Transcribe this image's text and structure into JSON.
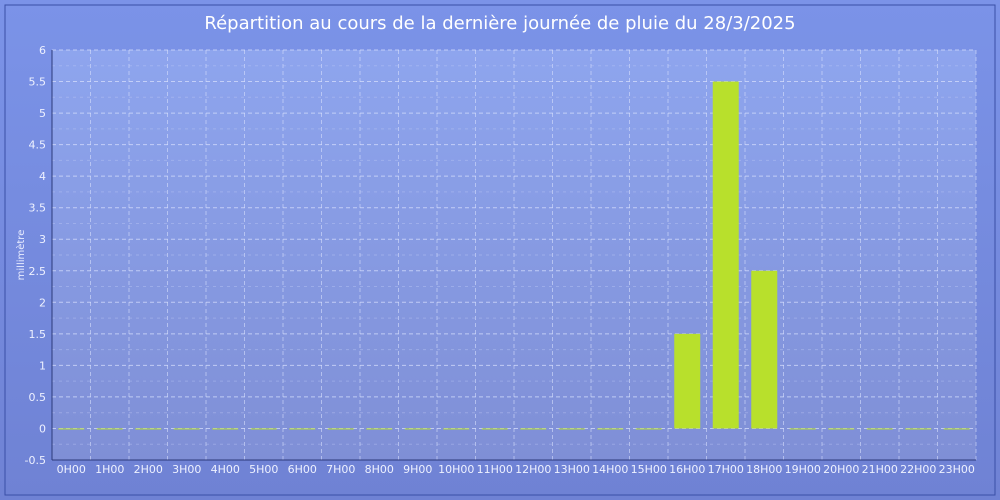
{
  "chart_data": {
    "type": "bar",
    "title": "Répartition au cours de la dernière journée de pluie du 28/3/2025",
    "xlabel": "",
    "ylabel": "millimètre",
    "categories": [
      "0H00",
      "1H00",
      "2H00",
      "3H00",
      "4H00",
      "5H00",
      "6H00",
      "7H00",
      "8H00",
      "9H00",
      "10H00",
      "11H00",
      "12H00",
      "13H00",
      "14H00",
      "15H00",
      "16H00",
      "17H00",
      "18H00",
      "19H00",
      "20H00",
      "21H00",
      "22H00",
      "23H00"
    ],
    "values": [
      0,
      0,
      0,
      0,
      0,
      0,
      0,
      0,
      0,
      0,
      0,
      0,
      0,
      0,
      0,
      0,
      1.5,
      5.5,
      2.5,
      0,
      0,
      0,
      0,
      0
    ],
    "ylim": [
      -0.5,
      6
    ],
    "yticks": [
      -0.5,
      0,
      0.5,
      1,
      1.5,
      2,
      2.5,
      3,
      3.5,
      4,
      4.5,
      5,
      5.5,
      6
    ],
    "grid": true,
    "bar_color": "#b8e02c",
    "plot_background": "#8aa0e8",
    "page_background": "#7386dc"
  }
}
